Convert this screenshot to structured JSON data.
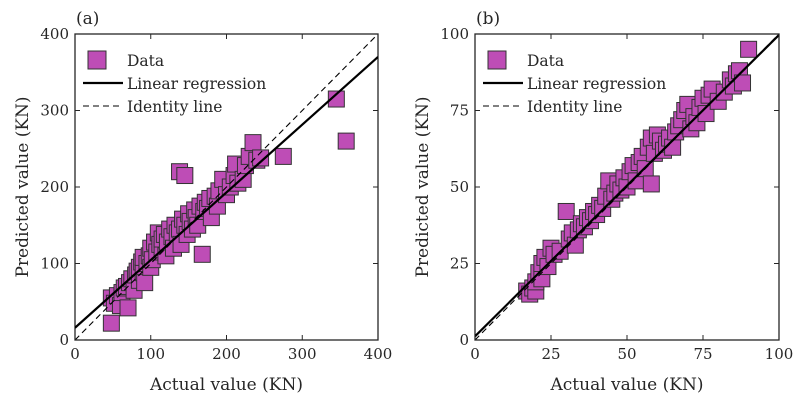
{
  "colors": {
    "data_fill": "#BE4DB6",
    "data_stroke": "#333333",
    "line": "#000000",
    "axis": "#262626"
  },
  "chart_data": [
    {
      "type": "scatter",
      "panel_label": "(a)",
      "xlabel": "Actual value (KN)",
      "ylabel": "Predicted value (KN)",
      "xlim": [
        0,
        400
      ],
      "ylim": [
        0,
        400
      ],
      "xticks": [
        0,
        100,
        200,
        300,
        400
      ],
      "yticks": [
        0,
        100,
        200,
        300,
        400
      ],
      "legend": {
        "position": "top-left",
        "entries": [
          "Data",
          "Linear regression",
          "Identity line"
        ]
      },
      "regression": {
        "slope": 0.885,
        "intercept": 16
      },
      "identity": {
        "slope": 1,
        "intercept": 0
      },
      "points": [
        [
          48,
          22
        ],
        [
          48,
          55
        ],
        [
          52,
          48
        ],
        [
          56,
          58
        ],
        [
          60,
          45
        ],
        [
          62,
          62
        ],
        [
          65,
          68
        ],
        [
          68,
          70
        ],
        [
          70,
          42
        ],
        [
          72,
          75
        ],
        [
          75,
          80
        ],
        [
          78,
          65
        ],
        [
          80,
          85
        ],
        [
          82,
          90
        ],
        [
          85,
          78
        ],
        [
          85,
          95
        ],
        [
          88,
          102
        ],
        [
          90,
          88
        ],
        [
          90,
          108
        ],
        [
          92,
          75
        ],
        [
          95,
          100
        ],
        [
          98,
          110
        ],
        [
          100,
          95
        ],
        [
          100,
          120
        ],
        [
          102,
          105
        ],
        [
          105,
          128
        ],
        [
          108,
          115
        ],
        [
          110,
          140
        ],
        [
          112,
          125
        ],
        [
          115,
          118
        ],
        [
          115,
          132
        ],
        [
          118,
          138
        ],
        [
          120,
          110
        ],
        [
          122,
          128
        ],
        [
          125,
          145
        ],
        [
          128,
          135
        ],
        [
          130,
          120
        ],
        [
          132,
          150
        ],
        [
          135,
          140
        ],
        [
          138,
          145
        ],
        [
          140,
          125
        ],
        [
          142,
          158
        ],
        [
          145,
          150
        ],
        [
          148,
          138
        ],
        [
          150,
          165
        ],
        [
          152,
          155
        ],
        [
          155,
          145
        ],
        [
          158,
          170
        ],
        [
          160,
          160
        ],
        [
          162,
          150
        ],
        [
          165,
          175
        ],
        [
          168,
          112
        ],
        [
          170,
          168
        ],
        [
          172,
          180
        ],
        [
          175,
          172
        ],
        [
          178,
          185
        ],
        [
          180,
          160
        ],
        [
          185,
          188
        ],
        [
          188,
          175
        ],
        [
          190,
          195
        ],
        [
          195,
          210
        ],
        [
          200,
          190
        ],
        [
          205,
          200
        ],
        [
          210,
          215
        ],
        [
          212,
          230
        ],
        [
          215,
          205
        ],
        [
          222,
          210
        ],
        [
          225,
          228
        ],
        [
          230,
          240
        ],
        [
          235,
          258
        ],
        [
          240,
          235
        ],
        [
          245,
          238
        ],
        [
          275,
          240
        ],
        [
          138,
          220
        ],
        [
          145,
          215
        ],
        [
          345,
          315
        ],
        [
          358,
          260
        ]
      ]
    },
    {
      "type": "scatter",
      "panel_label": "(b)",
      "xlabel": "Actual value (KN)",
      "ylabel": "Predicted value (KN)",
      "xlim": [
        0,
        100
      ],
      "ylim": [
        0,
        100
      ],
      "xticks": [
        0,
        25,
        50,
        75,
        100
      ],
      "yticks": [
        0,
        25,
        50,
        75,
        100
      ],
      "legend": {
        "position": "top-left",
        "entries": [
          "Data",
          "Linear regression",
          "Identity line"
        ]
      },
      "regression": {
        "slope": 0.985,
        "intercept": 1.2
      },
      "identity": {
        "slope": 1,
        "intercept": 0
      },
      "points": [
        [
          17,
          16
        ],
        [
          18,
          15
        ],
        [
          19,
          17
        ],
        [
          20,
          16
        ],
        [
          20,
          19
        ],
        [
          21,
          22
        ],
        [
          22,
          20
        ],
        [
          22,
          25
        ],
        [
          23,
          27
        ],
        [
          24,
          24
        ],
        [
          25,
          30
        ],
        [
          26,
          28
        ],
        [
          28,
          29
        ],
        [
          30,
          42
        ],
        [
          31,
          33
        ],
        [
          32,
          35
        ],
        [
          33,
          31
        ],
        [
          34,
          36
        ],
        [
          35,
          38
        ],
        [
          36,
          37
        ],
        [
          37,
          40
        ],
        [
          38,
          39
        ],
        [
          39,
          42
        ],
        [
          40,
          41
        ],
        [
          41,
          44
        ],
        [
          42,
          43
        ],
        [
          43,
          47
        ],
        [
          44,
          52
        ],
        [
          45,
          46
        ],
        [
          46,
          48
        ],
        [
          47,
          51
        ],
        [
          48,
          49
        ],
        [
          49,
          53
        ],
        [
          50,
          50
        ],
        [
          51,
          55
        ],
        [
          52,
          57
        ],
        [
          53,
          52
        ],
        [
          54,
          58
        ],
        [
          55,
          60
        ],
        [
          56,
          56
        ],
        [
          57,
          63
        ],
        [
          58,
          66
        ],
        [
          58,
          51
        ],
        [
          59,
          61
        ],
        [
          60,
          67
        ],
        [
          61,
          65
        ],
        [
          62,
          62
        ],
        [
          63,
          64
        ],
        [
          64,
          66
        ],
        [
          65,
          63
        ],
        [
          66,
          68
        ],
        [
          67,
          70
        ],
        [
          68,
          72
        ],
        [
          69,
          75
        ],
        [
          70,
          77
        ],
        [
          71,
          69
        ],
        [
          72,
          73
        ],
        [
          73,
          71
        ],
        [
          74,
          76
        ],
        [
          75,
          79
        ],
        [
          76,
          74
        ],
        [
          77,
          80
        ],
        [
          78,
          82
        ],
        [
          80,
          78
        ],
        [
          82,
          81
        ],
        [
          84,
          85
        ],
        [
          85,
          83
        ],
        [
          86,
          87
        ],
        [
          87,
          88
        ],
        [
          88,
          84
        ],
        [
          90,
          95
        ]
      ]
    }
  ]
}
